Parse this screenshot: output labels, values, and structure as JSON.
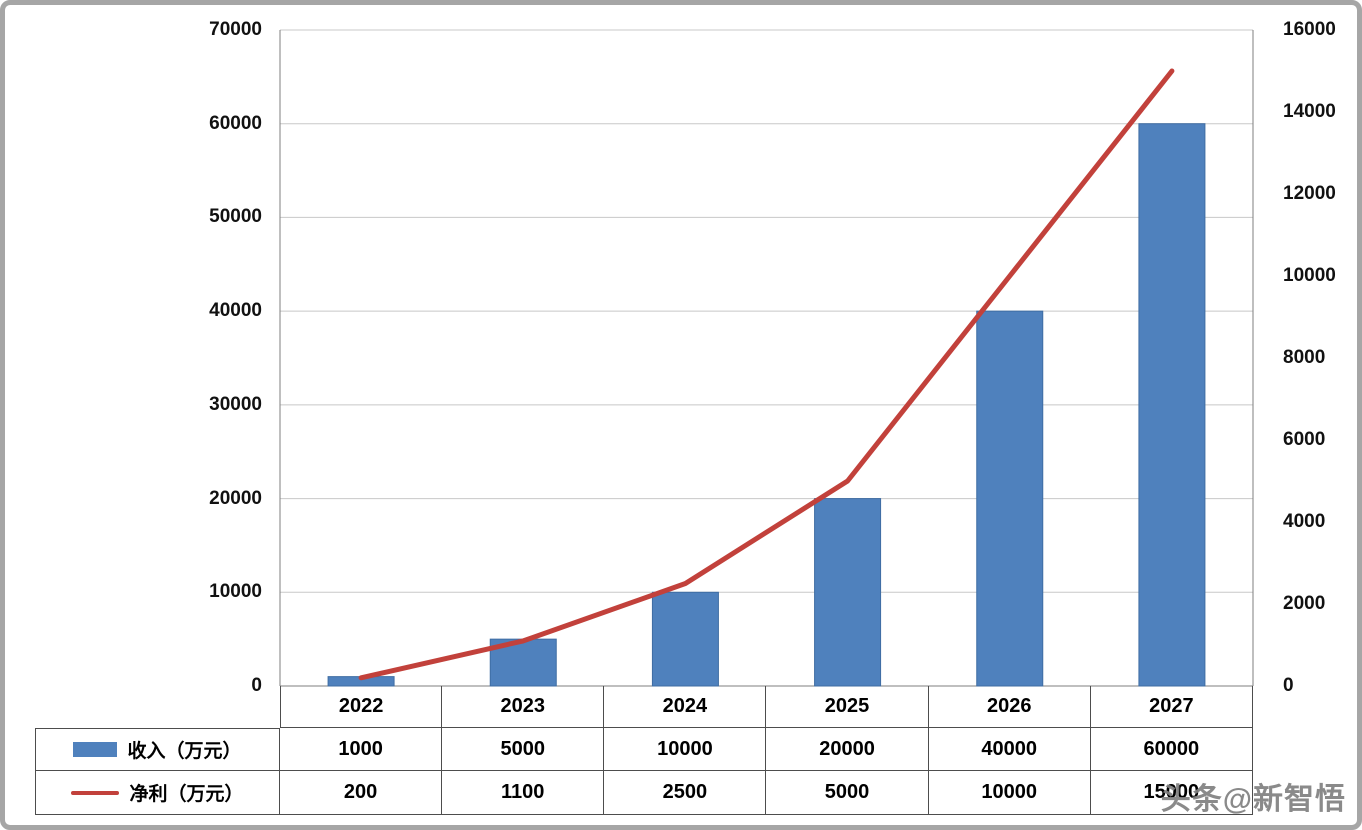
{
  "chart_data": {
    "type": "bar",
    "subtype": "combo-bar-line",
    "title": "",
    "xlabel": "",
    "ylabel": "",
    "categories": [
      "2022",
      "2023",
      "2024",
      "2025",
      "2026",
      "2027"
    ],
    "series": [
      {
        "name": "收入（万元）",
        "type": "bar",
        "axis": "left",
        "color": "#4f81bd",
        "values": [
          1000,
          5000,
          10000,
          20000,
          40000,
          60000
        ]
      },
      {
        "name": "净利（万元）",
        "type": "line",
        "axis": "right",
        "color": "#c2413b",
        "values": [
          200,
          1100,
          2500,
          5000,
          10000,
          15000
        ]
      }
    ],
    "left_axis": {
      "min": 0,
      "max": 70000,
      "step": 10000,
      "tick_labels": [
        "0",
        "10000",
        "20000",
        "30000",
        "40000",
        "50000",
        "60000",
        "70000"
      ]
    },
    "right_axis": {
      "min": 0,
      "max": 16000,
      "step": 2000,
      "tick_labels": [
        "0",
        "2000",
        "4000",
        "6000",
        "8000",
        "10000",
        "12000",
        "14000",
        "16000"
      ]
    },
    "grid": true,
    "legend_position": "table-left"
  },
  "table": {
    "rows": [
      {
        "label": "收入（万元）",
        "swatch": "bar",
        "values": [
          "1000",
          "5000",
          "10000",
          "20000",
          "40000",
          "60000"
        ]
      },
      {
        "label": "净利（万元）",
        "swatch": "line",
        "values": [
          "200",
          "1100",
          "2500",
          "5000",
          "10000",
          "15000"
        ]
      }
    ]
  },
  "watermark": {
    "text": "头条@新智悟"
  }
}
